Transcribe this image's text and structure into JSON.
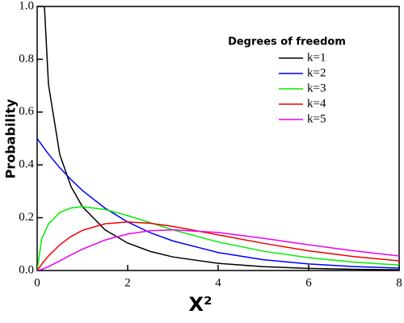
{
  "chart_data": {
    "type": "line",
    "x_label": "X²",
    "y_label": "Probability",
    "legend_title": "Degrees of freedom",
    "legend": "upper right",
    "x": [
      0,
      0.1,
      0.25,
      0.5,
      0.75,
      1,
      1.5,
      2,
      2.5,
      3,
      4,
      5,
      6,
      7,
      8
    ],
    "series": [
      {
        "name": "k=1",
        "color": "#000000",
        "values": [
          null,
          1.2,
          0.704,
          0.439,
          0.317,
          0.242,
          0.154,
          0.104,
          0.0723,
          0.0514,
          0.027,
          0.0146,
          0.0081,
          0.0046,
          0.0026
        ]
      },
      {
        "name": "k=2",
        "color": "#0000ff",
        "values": [
          0.5,
          0.476,
          0.441,
          0.389,
          0.344,
          0.303,
          0.236,
          0.184,
          0.143,
          0.112,
          0.068,
          0.041,
          0.025,
          0.015,
          0.009
        ]
      },
      {
        "name": "k=3",
        "color": "#00ee00",
        "values": [
          0,
          0.12,
          0.176,
          0.22,
          0.237,
          0.242,
          0.231,
          0.208,
          0.181,
          0.154,
          0.108,
          0.0732,
          0.0487,
          0.0319,
          0.0207
        ]
      },
      {
        "name": "k=4",
        "color": "#ee0000",
        "values": [
          0,
          0.0238,
          0.0552,
          0.0974,
          0.129,
          0.152,
          0.177,
          0.184,
          0.179,
          0.167,
          0.135,
          0.103,
          0.0747,
          0.0528,
          0.0366
        ]
      },
      {
        "name": "k=5",
        "color": "#ee00ee",
        "values": [
          0,
          0.004,
          0.0147,
          0.0366,
          0.0594,
          0.0807,
          0.1154,
          0.1384,
          0.1506,
          0.1542,
          0.144,
          0.122,
          0.0974,
          0.0744,
          0.0551
        ]
      }
    ],
    "xlim": [
      0,
      8
    ],
    "xticks": [
      0,
      2,
      4,
      6,
      8
    ],
    "ylim": [
      0,
      1
    ],
    "yticks": [
      {
        "value": 0,
        "label": "0.0"
      },
      0.2,
      0.4,
      0.6,
      0.8,
      {
        "value": 1,
        "label": "1.0"
      }
    ],
    "grid": false
  }
}
